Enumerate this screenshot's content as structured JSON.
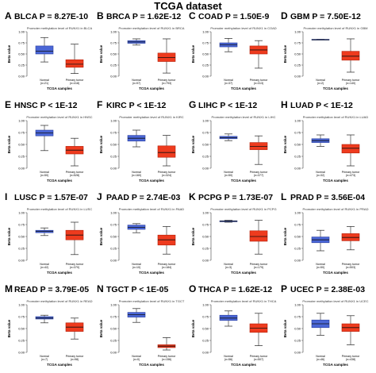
{
  "title": "TCGA dataset",
  "colors": {
    "normal": "#4a66d6",
    "normal_edge": "#2a3f9e",
    "tumor": "#ee3b1e",
    "tumor_edge": "#b3200a"
  },
  "chart_data": [
    {
      "type": "box",
      "letter": "A",
      "label": "BLCA P = 8.27E-10",
      "subtitle": "Promoter methylation level of RUNX1 in BLCA",
      "ylabel": "Beta value",
      "xlabel": "TCGA samples",
      "categories": [
        "Normal",
        "Primary tumor"
      ],
      "counts": [
        "(n=21)",
        "(n=418)"
      ],
      "ylim": [
        0,
        1
      ],
      "boxes": [
        {
          "min": 0.32,
          "q1": 0.5,
          "median": 0.56,
          "q3": 0.68,
          "max": 0.87
        },
        {
          "min": 0.06,
          "q1": 0.2,
          "median": 0.27,
          "q3": 0.37,
          "max": 0.72
        }
      ]
    },
    {
      "type": "box",
      "letter": "B",
      "label": "BRCA P = 1.62E-12",
      "subtitle": "Promoter methylation level of RUNX1 in BRCA",
      "ylabel": "Beta value",
      "xlabel": "TCGA samples",
      "categories": [
        "Normal",
        "Primary tumor"
      ],
      "counts": [
        "(n=97)",
        "(n=793)"
      ],
      "ylim": [
        0,
        1
      ],
      "boxes": [
        {
          "min": 0.7,
          "q1": 0.74,
          "median": 0.77,
          "q3": 0.8,
          "max": 0.84
        },
        {
          "min": 0.07,
          "q1": 0.33,
          "median": 0.42,
          "q3": 0.52,
          "max": 0.84
        }
      ]
    },
    {
      "type": "box",
      "letter": "C",
      "label": "COAD P = 1.50E-9",
      "subtitle": "Promoter methylation level of RUNX1 in COAD",
      "ylabel": "Beta value",
      "xlabel": "TCGA samples",
      "categories": [
        "Normal",
        "Primary tumor"
      ],
      "counts": [
        "(n=37)",
        "(n=313)"
      ],
      "ylim": [
        0,
        1
      ],
      "boxes": [
        {
          "min": 0.55,
          "q1": 0.66,
          "median": 0.71,
          "q3": 0.75,
          "max": 0.85
        },
        {
          "min": 0.18,
          "q1": 0.5,
          "median": 0.59,
          "q3": 0.68,
          "max": 0.8
        }
      ]
    },
    {
      "type": "box",
      "letter": "D",
      "label": "GBM P = 7.50E-12",
      "subtitle": "Promoter methylation level of RUNX1 in GBM",
      "ylabel": "Beta value",
      "xlabel": "TCGA samples",
      "categories": [
        "Normal",
        "Primary tumor"
      ],
      "counts": [
        "(n=2)",
        "(n=140)"
      ],
      "ylim": [
        0,
        1
      ],
      "boxes": [
        {
          "min": 0.82,
          "q1": 0.82,
          "median": 0.82,
          "q3": 0.83,
          "max": 0.83
        },
        {
          "min": 0.09,
          "q1": 0.36,
          "median": 0.45,
          "q3": 0.56,
          "max": 0.84
        }
      ]
    },
    {
      "type": "box",
      "letter": "E",
      "label": "HNSC P < 1E-12",
      "subtitle": "Promoter methylation level of RUNX1 in HNSC",
      "ylabel": "Beta value",
      "xlabel": "TCGA samples",
      "categories": [
        "Normal",
        "Primary tumor"
      ],
      "counts": [
        "(n=50)",
        "(n=528)"
      ],
      "ylim": [
        0,
        1
      ],
      "boxes": [
        {
          "min": 0.37,
          "q1": 0.68,
          "median": 0.74,
          "q3": 0.8,
          "max": 0.9
        },
        {
          "min": 0.05,
          "q1": 0.3,
          "median": 0.38,
          "q3": 0.46,
          "max": 0.63
        }
      ]
    },
    {
      "type": "box",
      "letter": "F",
      "label": "KIRC P < 1E-12",
      "subtitle": "Promoter methylation level of RUNX1 in KIRC",
      "ylabel": "Beta value",
      "xlabel": "TCGA samples",
      "categories": [
        "Normal",
        "Primary tumor"
      ],
      "counts": [
        "(n=160)",
        "(n=324)"
      ],
      "ylim": [
        0,
        1
      ],
      "boxes": [
        {
          "min": 0.45,
          "q1": 0.57,
          "median": 0.63,
          "q3": 0.69,
          "max": 0.8
        },
        {
          "min": 0.05,
          "q1": 0.23,
          "median": 0.33,
          "q3": 0.47,
          "max": 0.69
        }
      ]
    },
    {
      "type": "box",
      "letter": "G",
      "label": "LIHC P < 1E-12",
      "subtitle": "Promoter methylation level of RUNX1 in LIHC",
      "ylabel": "Beta value",
      "xlabel": "TCGA samples",
      "categories": [
        "Normal",
        "Primary tumor"
      ],
      "counts": [
        "(n=50)",
        "(n=377)"
      ],
      "ylim": [
        0,
        1
      ],
      "boxes": [
        {
          "min": 0.58,
          "q1": 0.62,
          "median": 0.64,
          "q3": 0.67,
          "max": 0.72
        },
        {
          "min": 0.08,
          "q1": 0.39,
          "median": 0.46,
          "q3": 0.54,
          "max": 0.68
        }
      ]
    },
    {
      "type": "box",
      "letter": "H",
      "label": "LUAD P < 1E-12",
      "subtitle": "Promoter methylation level of RUNX1 in LUAD",
      "ylabel": "Beta value",
      "xlabel": "TCGA samples",
      "categories": [
        "Normal",
        "Primary tumor"
      ],
      "counts": [
        "(n=32)",
        "(n=473)"
      ],
      "ylim": [
        0,
        1
      ],
      "boxes": [
        {
          "min": 0.46,
          "q1": 0.54,
          "median": 0.58,
          "q3": 0.62,
          "max": 0.7
        },
        {
          "min": 0.05,
          "q1": 0.32,
          "median": 0.42,
          "q3": 0.5,
          "max": 0.7
        }
      ]
    },
    {
      "type": "box",
      "letter": "I",
      "label": "LUSC P = 1.57E-07",
      "subtitle": "Promoter methylation level of RUNX1 in LUSC",
      "ylabel": "Beta value",
      "xlabel": "TCGA samples",
      "categories": [
        "Normal",
        "Primary tumor"
      ],
      "counts": [
        "(n=42)",
        "(n=370)"
      ],
      "ylim": [
        0,
        1
      ],
      "boxes": [
        {
          "min": 0.52,
          "q1": 0.58,
          "median": 0.61,
          "q3": 0.63,
          "max": 0.68
        },
        {
          "min": 0.12,
          "q1": 0.43,
          "median": 0.53,
          "q3": 0.63,
          "max": 0.8
        }
      ]
    },
    {
      "type": "box",
      "letter": "J",
      "label": "PAAD P = 2.74E-03",
      "subtitle": "Promoter methylation level of RUNX1 in PAAD",
      "ylabel": "Beta value",
      "xlabel": "TCGA samples",
      "categories": [
        "Normal",
        "Primary tumor"
      ],
      "counts": [
        "(n=10)",
        "(n=184)"
      ],
      "ylim": [
        0,
        1
      ],
      "boxes": [
        {
          "min": 0.58,
          "q1": 0.65,
          "median": 0.69,
          "q3": 0.74,
          "max": 0.77
        },
        {
          "min": 0.13,
          "q1": 0.32,
          "median": 0.43,
          "q3": 0.53,
          "max": 0.71
        }
      ]
    },
    {
      "type": "box",
      "letter": "K",
      "label": "PCPG P = 1.73E-07",
      "subtitle": "Promoter methylation level of RUNX1 in PCPG",
      "ylabel": "Beta value",
      "xlabel": "TCGA samples",
      "categories": [
        "Normal",
        "Primary tumor"
      ],
      "counts": [
        "(n=3)",
        "(n=179)"
      ],
      "ylim": [
        0,
        1
      ],
      "boxes": [
        {
          "min": 0.8,
          "q1": 0.81,
          "median": 0.82,
          "q3": 0.83,
          "max": 0.84
        },
        {
          "min": 0.13,
          "q1": 0.4,
          "median": 0.5,
          "q3": 0.62,
          "max": 0.84
        }
      ]
    },
    {
      "type": "box",
      "letter": "L",
      "label": "PRAD P = 3.56E-04",
      "subtitle": "Promoter methylation level of RUNX1 in PRAD",
      "ylabel": "Beta value",
      "xlabel": "TCGA samples",
      "categories": [
        "Normal",
        "Primary tumor"
      ],
      "counts": [
        "(n=50)",
        "(n=503)"
      ],
      "ylim": [
        0,
        1
      ],
      "boxes": [
        {
          "min": 0.2,
          "q1": 0.37,
          "median": 0.43,
          "q3": 0.49,
          "max": 0.63
        },
        {
          "min": 0.22,
          "q1": 0.41,
          "median": 0.48,
          "q3": 0.56,
          "max": 0.71
        }
      ]
    },
    {
      "type": "box",
      "letter": "M",
      "label": "READ P = 3.79E-05",
      "subtitle": "Promoter methylation level of RUNX1 in READ",
      "ylabel": "Beta value",
      "xlabel": "TCGA samples",
      "categories": [
        "Normal",
        "Primary tumor"
      ],
      "counts": [
        "(n=7)",
        "(n=98)"
      ],
      "ylim": [
        0,
        1
      ],
      "boxes": [
        {
          "min": 0.62,
          "q1": 0.7,
          "median": 0.72,
          "q3": 0.75,
          "max": 0.78
        },
        {
          "min": 0.28,
          "q1": 0.44,
          "median": 0.53,
          "q3": 0.62,
          "max": 0.72
        }
      ]
    },
    {
      "type": "box",
      "letter": "N",
      "label": "TGCT P < 1E-05",
      "subtitle": "Promoter methylation level of RUNX1 in TGCT",
      "ylabel": "Beta value",
      "xlabel": "TCGA samples",
      "categories": [
        "Normal",
        "Primary tumor"
      ],
      "counts": [
        "(n=0)",
        "(n=156)"
      ],
      "ylim": [
        0,
        1
      ],
      "boxes": [
        {
          "min": 0.63,
          "q1": 0.74,
          "median": 0.79,
          "q3": 0.84,
          "max": 0.92
        },
        {
          "min": 0.05,
          "q1": 0.1,
          "median": 0.13,
          "q3": 0.16,
          "max": 0.31
        }
      ]
    },
    {
      "type": "box",
      "letter": "O",
      "label": "THCA P = 1.62E-12",
      "subtitle": "Promoter methylation level of RUNX1 in THCA",
      "ylabel": "Beta value",
      "xlabel": "TCGA samples",
      "categories": [
        "Normal",
        "Primary tumor"
      ],
      "counts": [
        "(n=56)",
        "(n=507)"
      ],
      "ylim": [
        0,
        1
      ],
      "boxes": [
        {
          "min": 0.55,
          "q1": 0.67,
          "median": 0.72,
          "q3": 0.78,
          "max": 0.87
        },
        {
          "min": 0.14,
          "q1": 0.42,
          "median": 0.51,
          "q3": 0.6,
          "max": 0.82
        }
      ]
    },
    {
      "type": "box",
      "letter": "P",
      "label": "UCEC P = 2.38E-03",
      "subtitle": "Promoter methylation level of RUNX1 in UCEC",
      "ylabel": "Beta value",
      "xlabel": "TCGA samples",
      "categories": [
        "Normal",
        "Primary tumor"
      ],
      "counts": [
        "(n=46)",
        "(n=438)"
      ],
      "ylim": [
        0,
        1
      ],
      "boxes": [
        {
          "min": 0.36,
          "q1": 0.52,
          "median": 0.6,
          "q3": 0.68,
          "max": 0.82
        },
        {
          "min": 0.16,
          "q1": 0.44,
          "median": 0.52,
          "q3": 0.6,
          "max": 0.77
        }
      ]
    }
  ]
}
